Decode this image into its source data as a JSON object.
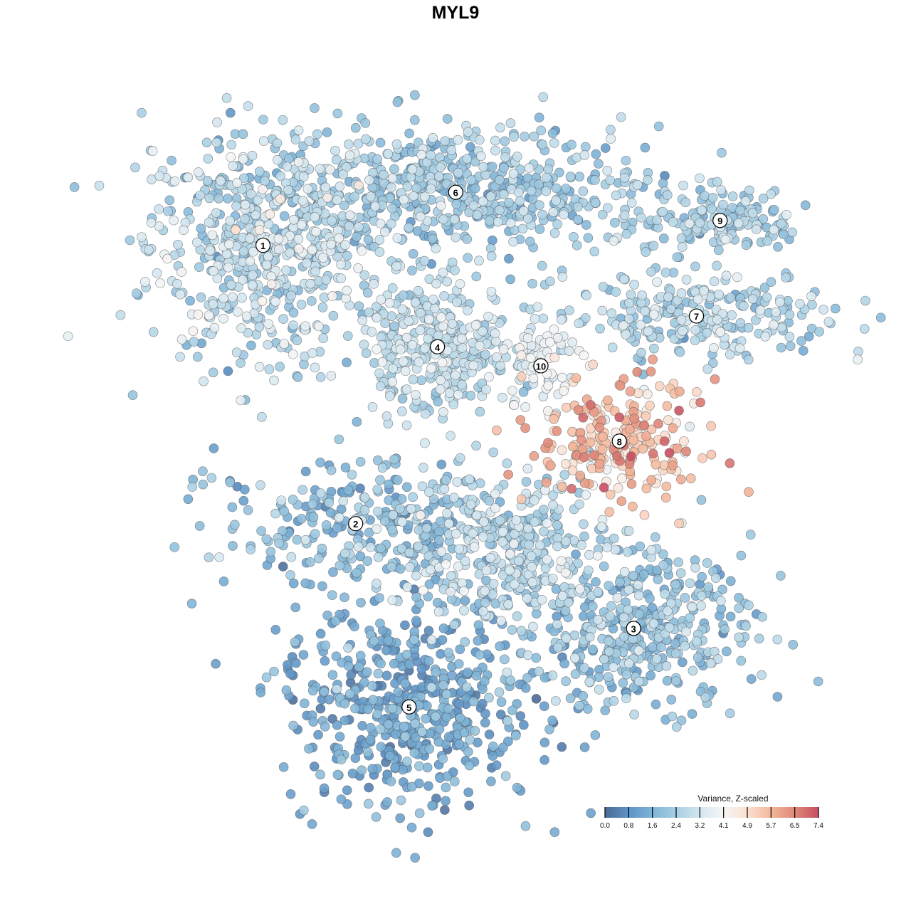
{
  "chart_data": {
    "type": "scatter",
    "title": "MYL9",
    "xlabel": "",
    "ylabel": "",
    "xlim": [
      -50,
      50
    ],
    "ylim": [
      -50,
      50
    ],
    "grid": false,
    "point_count_estimate": 3600,
    "clusters": [
      {
        "label": "1",
        "x": -31.1,
        "y": 32.1,
        "sx": 8.5,
        "sy": 9,
        "n": 560,
        "mean_expr": 2.7,
        "sd_expr": 0.7
      },
      {
        "label": "6",
        "x": -2.6,
        "y": 40.2,
        "sx": 15,
        "sy": 5,
        "n": 600,
        "mean_expr": 2.2,
        "sd_expr": 0.6
      },
      {
        "label": "9",
        "x": 36.5,
        "y": 35.9,
        "sx": 6,
        "sy": 2.6,
        "n": 150,
        "mean_expr": 2.3,
        "sd_expr": 0.5
      },
      {
        "label": "7",
        "x": 33.0,
        "y": 21.3,
        "sx": 10,
        "sy": 3.2,
        "n": 260,
        "mean_expr": 2.5,
        "sd_expr": 0.6
      },
      {
        "label": "4",
        "x": -5.3,
        "y": 16.6,
        "sx": 5.5,
        "sy": 5,
        "n": 330,
        "mean_expr": 2.8,
        "sd_expr": 0.5
      },
      {
        "label": "10",
        "x": 10.0,
        "y": 13.7,
        "sx": 2.8,
        "sy": 4,
        "n": 70,
        "mean_expr": 3.6,
        "sd_expr": 0.5
      },
      {
        "label": "8",
        "x": 21.6,
        "y": 2.2,
        "sx": 6,
        "sy": 4.5,
        "n": 230,
        "mean_expr": 5.4,
        "sd_expr": 0.8
      },
      {
        "label": "2",
        "x": -17.4,
        "y": -10.4,
        "sx": 10,
        "sy": 5,
        "n": 260,
        "mean_expr": 1.8,
        "sd_expr": 0.6
      },
      {
        "label": "3",
        "x": 23.7,
        "y": -26.4,
        "sx": 9,
        "sy": 6,
        "n": 420,
        "mean_expr": 2.0,
        "sd_expr": 0.6
      },
      {
        "label": "5",
        "x": -9.5,
        "y": -38.4,
        "sx": 9.5,
        "sy": 7.5,
        "n": 520,
        "mean_expr": 1.2,
        "sd_expr": 0.5
      },
      {
        "label": "",
        "x": 4.0,
        "y": -14.0,
        "sx": 9,
        "sy": 6,
        "n": 380,
        "mean_expr": 2.6,
        "sd_expr": 0.6
      }
    ],
    "colorbar": {
      "title": "Variance, Z-scaled",
      "ticks": [
        "0.0",
        "0.8",
        "1.6",
        "2.4",
        "3.2",
        "4.1",
        "4.9",
        "5.7",
        "6.5",
        "7.4"
      ],
      "tick_values": [
        0.0,
        0.8,
        1.6,
        2.4,
        3.2,
        4.1,
        4.9,
        5.7,
        6.5,
        7.4
      ],
      "colors": [
        "#4b6a96",
        "#5d93c6",
        "#7fb4d7",
        "#a8cfe3",
        "#d3e6f0",
        "#f5f5f5",
        "#fbe0d1",
        "#f4b79b",
        "#df8878",
        "#c64f62"
      ],
      "range": [
        0.0,
        7.4
      ],
      "placement": "bottom-right"
    }
  }
}
